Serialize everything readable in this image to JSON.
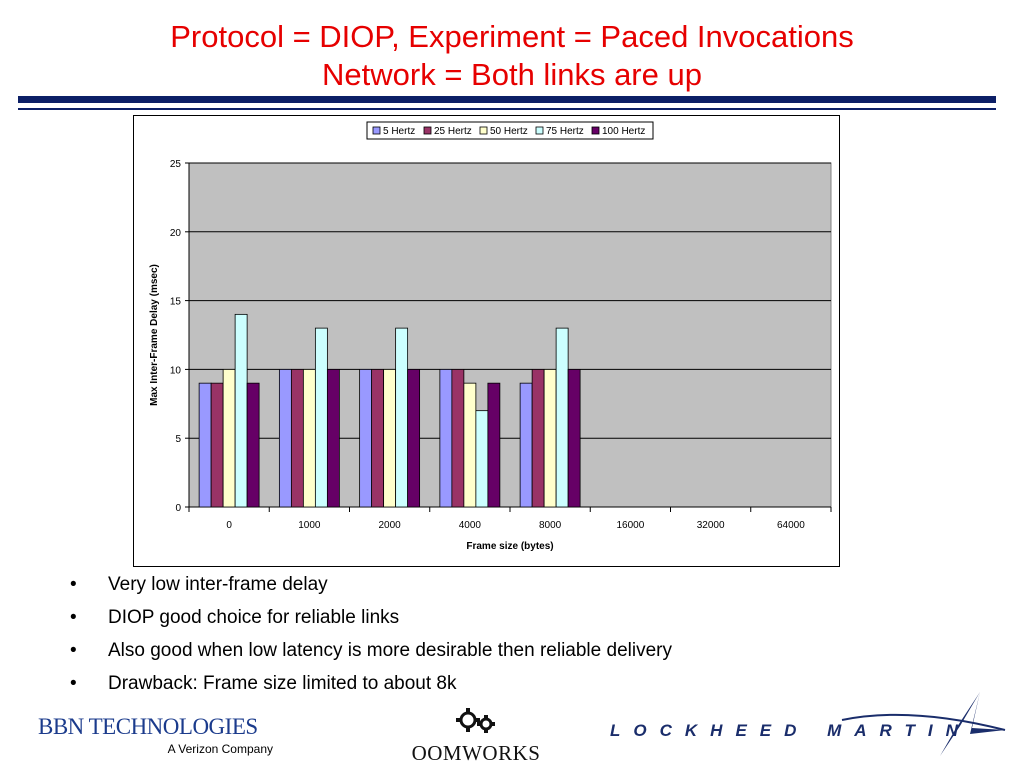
{
  "slide": {
    "title_line1": "Protocol = DIOP, Experiment = Paced Invocations",
    "title_line2": "Network = Both links are up",
    "title_color": "#e60000",
    "rule_color": "#0c1f66"
  },
  "bullets": [
    "Very low inter-frame delay",
    "DIOP good choice for reliable links",
    "Also good when low latency is more desirable then reliable delivery",
    "Drawback: Frame size limited to about 8k"
  ],
  "logos": {
    "bbn_name": "BBN TECHNOLOGIES",
    "bbn_tagline": "A Verizon Company",
    "oomworks": "OOMWORKS",
    "lockheed": "LOCKHEED MARTIN"
  },
  "chart_data": {
    "type": "bar",
    "title": "",
    "xlabel": "Frame size (bytes)",
    "ylabel": "Max Inter-Frame Delay (msec)",
    "ylim": [
      0,
      25
    ],
    "yticks": [
      0,
      5,
      10,
      15,
      20,
      25
    ],
    "grid": true,
    "plot_background": "#c0c0c0",
    "legend_position": "top",
    "categories": [
      "0",
      "1000",
      "2000",
      "4000",
      "8000",
      "16000",
      "32000",
      "64000"
    ],
    "series": [
      {
        "name": "5 Hertz",
        "color": "#9999ff",
        "values": [
          9,
          10,
          10,
          10,
          9,
          null,
          null,
          null
        ]
      },
      {
        "name": "25 Hertz",
        "color": "#993366",
        "values": [
          9,
          10,
          10,
          10,
          10,
          null,
          null,
          null
        ]
      },
      {
        "name": "50 Hertz",
        "color": "#ffffcc",
        "values": [
          10,
          10,
          10,
          9,
          10,
          null,
          null,
          null
        ]
      },
      {
        "name": "75 Hertz",
        "color": "#ccffff",
        "values": [
          14,
          13,
          13,
          7,
          13,
          null,
          null,
          null
        ]
      },
      {
        "name": "100 Hertz",
        "color": "#660066",
        "values": [
          9,
          10,
          10,
          9,
          10,
          null,
          null,
          null
        ]
      }
    ]
  }
}
